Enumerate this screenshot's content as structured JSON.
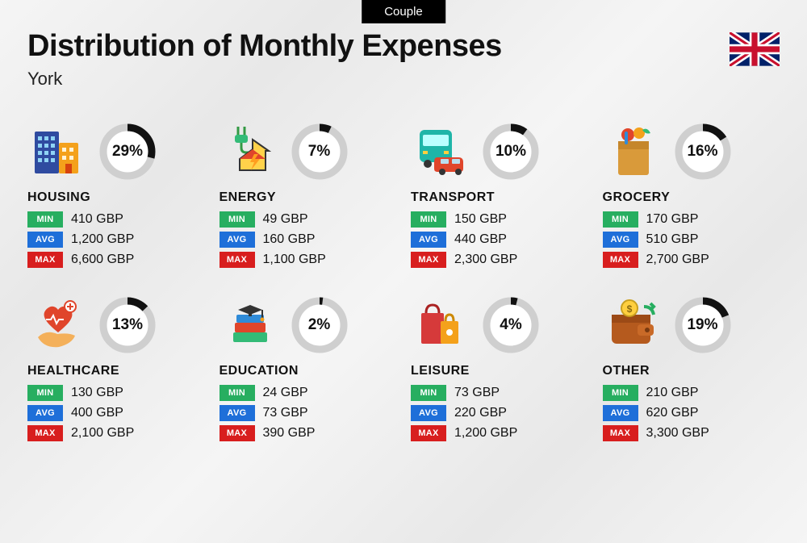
{
  "tag": "Couple",
  "title": "Distribution of Monthly Expenses",
  "city": "York",
  "flag": "uk",
  "currency": "GBP",
  "badge_colors": {
    "min": "#27ae60",
    "avg": "#1e6fd9",
    "max": "#d81e1e"
  },
  "badge_labels": {
    "min": "MIN",
    "avg": "AVG",
    "max": "MAX"
  },
  "ring": {
    "radius": 30,
    "stroke_width": 9,
    "track_color": "#cfcfcf",
    "progress_color": "#111111",
    "background": "#ffffff"
  },
  "title_fontsize": 38,
  "city_fontsize": 22,
  "categories": [
    {
      "key": "housing",
      "name": "HOUSING",
      "icon": "buildings",
      "pct": 29,
      "min": "410",
      "avg": "1,200",
      "max": "6,600"
    },
    {
      "key": "energy",
      "name": "ENERGY",
      "icon": "energy-home",
      "pct": 7,
      "min": "49",
      "avg": "160",
      "max": "1,100"
    },
    {
      "key": "transport",
      "name": "TRANSPORT",
      "icon": "bus-car",
      "pct": 10,
      "min": "150",
      "avg": "440",
      "max": "2,300"
    },
    {
      "key": "grocery",
      "name": "GROCERY",
      "icon": "grocery-bag",
      "pct": 16,
      "min": "170",
      "avg": "510",
      "max": "2,700"
    },
    {
      "key": "healthcare",
      "name": "HEALTHCARE",
      "icon": "heart-hand",
      "pct": 13,
      "min": "130",
      "avg": "400",
      "max": "2,100"
    },
    {
      "key": "education",
      "name": "EDUCATION",
      "icon": "grad-books",
      "pct": 2,
      "min": "24",
      "avg": "73",
      "max": "390"
    },
    {
      "key": "leisure",
      "name": "LEISURE",
      "icon": "shopping",
      "pct": 4,
      "min": "73",
      "avg": "220",
      "max": "1,200"
    },
    {
      "key": "other",
      "name": "OTHER",
      "icon": "wallet",
      "pct": 19,
      "min": "210",
      "avg": "620",
      "max": "3,300"
    }
  ]
}
